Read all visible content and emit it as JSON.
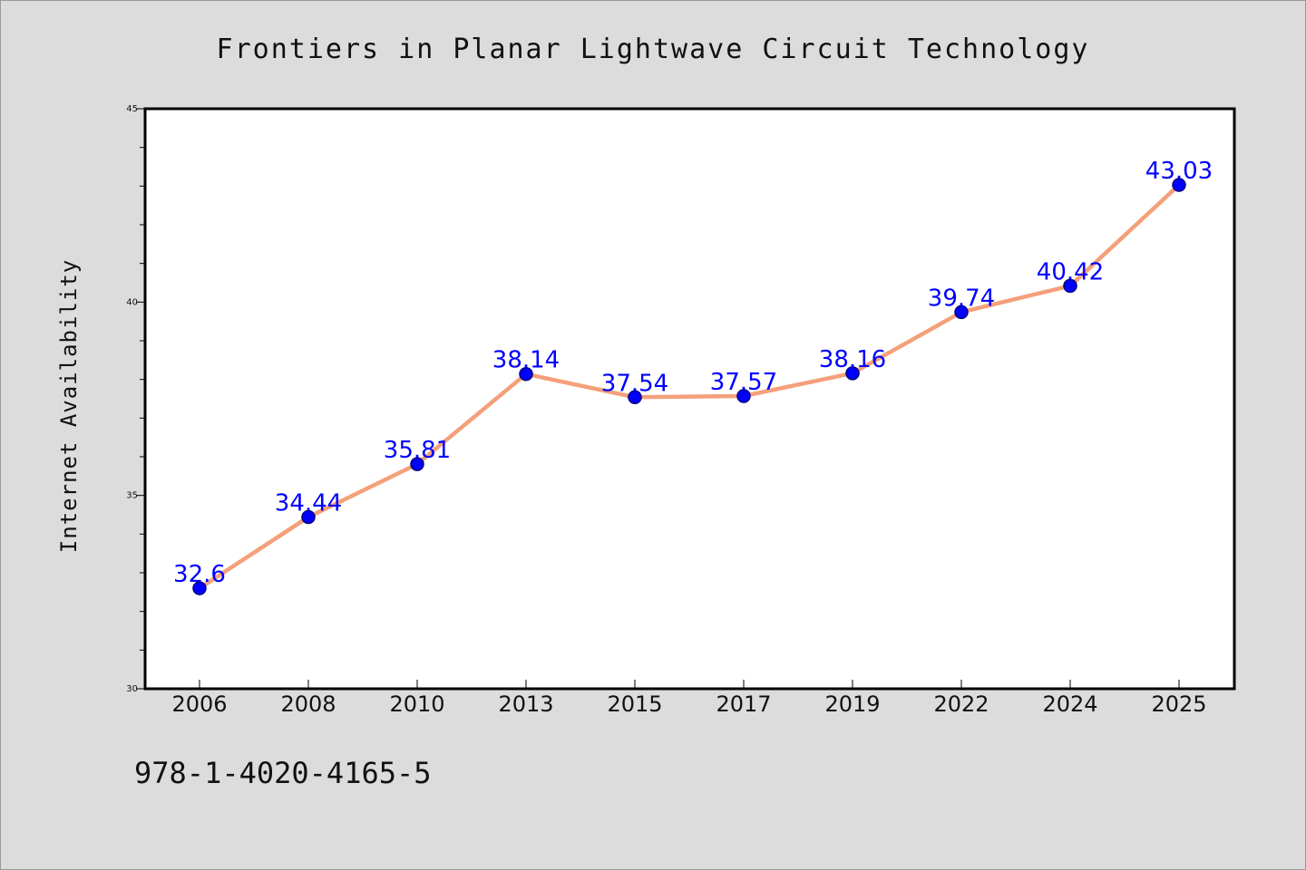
{
  "chart_data": {
    "type": "line",
    "title": "Frontiers in Planar Lightwave Circuit Technology",
    "xlabel": "",
    "ylabel": "Internet Availability",
    "categories": [
      "2006",
      "2008",
      "2010",
      "2013",
      "2015",
      "2017",
      "2019",
      "2022",
      "2024",
      "2025"
    ],
    "series": [
      {
        "values": [
          32.6,
          34.44,
          35.81,
          38.14,
          37.54,
          37.57,
          38.16,
          39.74,
          40.42,
          43.03
        ],
        "data_labels": [
          "32.6",
          "34.44",
          "35.81",
          "38.14",
          "37.54",
          "37.57",
          "38.16",
          "39.74",
          "40.42",
          "43.03"
        ]
      }
    ],
    "ylim": [
      30,
      45
    ],
    "yticks": [
      "30",
      "35",
      "40",
      "45"
    ],
    "grid": false,
    "legend": "none",
    "colors": {
      "line": "#f4a07a",
      "marker": "#0000ff",
      "marker_edge": "#000080",
      "label": "#0000ff",
      "background": "#dcdcdc",
      "plot_background": "#ffffff"
    }
  },
  "footer_text": "978-1-4020-4165-5"
}
